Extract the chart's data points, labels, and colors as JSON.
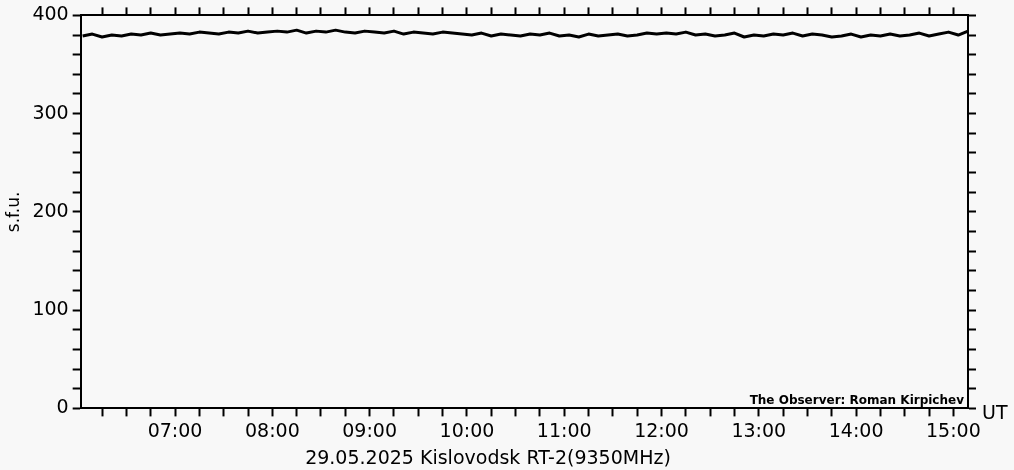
{
  "chart_data": {
    "type": "line",
    "title": "29.05.2025 Kislovodsk RT-2(9350MHz)",
    "xlabel": "UT",
    "ylabel": "s.f.u.",
    "annotations": [
      "The Observer: Roman Kirpichev"
    ],
    "xlim": [
      6.03,
      15.15
    ],
    "ylim": [
      0,
      400
    ],
    "xticks": [
      {
        "value": 6.25,
        "label": null
      },
      {
        "value": 6.5,
        "label": null
      },
      {
        "value": 6.75,
        "label": null
      },
      {
        "value": 7,
        "label": "07:00"
      },
      {
        "value": 7.25,
        "label": null
      },
      {
        "value": 7.5,
        "label": null
      },
      {
        "value": 7.75,
        "label": null
      },
      {
        "value": 8,
        "label": "08:00"
      },
      {
        "value": 8.25,
        "label": null
      },
      {
        "value": 8.5,
        "label": null
      },
      {
        "value": 8.75,
        "label": null
      },
      {
        "value": 9,
        "label": "09:00"
      },
      {
        "value": 9.25,
        "label": null
      },
      {
        "value": 9.5,
        "label": null
      },
      {
        "value": 9.75,
        "label": null
      },
      {
        "value": 10,
        "label": "10:00"
      },
      {
        "value": 10.25,
        "label": null
      },
      {
        "value": 10.5,
        "label": null
      },
      {
        "value": 10.75,
        "label": null
      },
      {
        "value": 11,
        "label": "11:00"
      },
      {
        "value": 11.25,
        "label": null
      },
      {
        "value": 11.5,
        "label": null
      },
      {
        "value": 11.75,
        "label": null
      },
      {
        "value": 12,
        "label": "12:00"
      },
      {
        "value": 12.25,
        "label": null
      },
      {
        "value": 12.5,
        "label": null
      },
      {
        "value": 12.75,
        "label": null
      },
      {
        "value": 13,
        "label": "13:00"
      },
      {
        "value": 13.25,
        "label": null
      },
      {
        "value": 13.5,
        "label": null
      },
      {
        "value": 13.75,
        "label": null
      },
      {
        "value": 14,
        "label": "14:00"
      },
      {
        "value": 14.25,
        "label": null
      },
      {
        "value": 14.5,
        "label": null
      },
      {
        "value": 14.75,
        "label": null
      },
      {
        "value": 15,
        "label": "15:00"
      }
    ],
    "yticks": [
      0,
      {
        "value": 20,
        "label": null
      },
      {
        "value": 40,
        "label": null
      },
      {
        "value": 60,
        "label": null
      },
      {
        "value": 80,
        "label": null
      },
      100,
      {
        "value": 120,
        "label": null
      },
      {
        "value": 140,
        "label": null
      },
      {
        "value": 160,
        "label": null
      },
      {
        "value": 180,
        "label": null
      },
      200,
      {
        "value": 220,
        "label": null
      },
      {
        "value": 240,
        "label": null
      },
      {
        "value": 260,
        "label": null
      },
      {
        "value": 280,
        "label": null
      },
      300,
      {
        "value": 320,
        "label": null
      },
      {
        "value": 340,
        "label": null
      },
      {
        "value": 360,
        "label": null
      },
      {
        "value": 380,
        "label": null
      },
      400
    ],
    "marker": "none",
    "line_style": "solid",
    "series": [
      {
        "color": "#000000",
        "x": [
          6.05,
          6.15,
          6.25,
          6.35,
          6.45,
          6.55,
          6.65,
          6.75,
          6.85,
          6.95,
          7.05,
          7.15,
          7.25,
          7.35,
          7.45,
          7.55,
          7.65,
          7.75,
          7.85,
          7.95,
          8.05,
          8.15,
          8.25,
          8.35,
          8.45,
          8.55,
          8.65,
          8.75,
          8.85,
          8.95,
          9.05,
          9.15,
          9.25,
          9.35,
          9.45,
          9.55,
          9.65,
          9.75,
          9.85,
          9.95,
          10.05,
          10.15,
          10.25,
          10.35,
          10.45,
          10.55,
          10.65,
          10.75,
          10.85,
          10.95,
          11.05,
          11.15,
          11.25,
          11.35,
          11.45,
          11.55,
          11.65,
          11.75,
          11.85,
          11.95,
          12.05,
          12.15,
          12.25,
          12.35,
          12.45,
          12.55,
          12.65,
          12.75,
          12.85,
          12.95,
          13.05,
          13.15,
          13.25,
          13.35,
          13.45,
          13.55,
          13.65,
          13.75,
          13.85,
          13.95,
          14.05,
          14.15,
          14.25,
          14.35,
          14.45,
          14.55,
          14.65,
          14.75,
          14.85,
          14.95,
          15.05,
          15.15
        ],
        "values": [
          379,
          381,
          378,
          380,
          379,
          381,
          380,
          382,
          380,
          381,
          382,
          381,
          383,
          382,
          381,
          383,
          382,
          384,
          382,
          383,
          384,
          383,
          385,
          382,
          384,
          383,
          385,
          383,
          382,
          384,
          383,
          382,
          384,
          381,
          383,
          382,
          381,
          383,
          382,
          381,
          380,
          382,
          379,
          381,
          380,
          379,
          381,
          380,
          382,
          379,
          380,
          378,
          381,
          379,
          380,
          381,
          379,
          380,
          382,
          381,
          382,
          381,
          383,
          380,
          381,
          379,
          380,
          382,
          378,
          380,
          379,
          381,
          380,
          382,
          379,
          381,
          380,
          378,
          379,
          381,
          378,
          380,
          379,
          381,
          379,
          380,
          382,
          379,
          381,
          383,
          380,
          384
        ]
      }
    ]
  }
}
